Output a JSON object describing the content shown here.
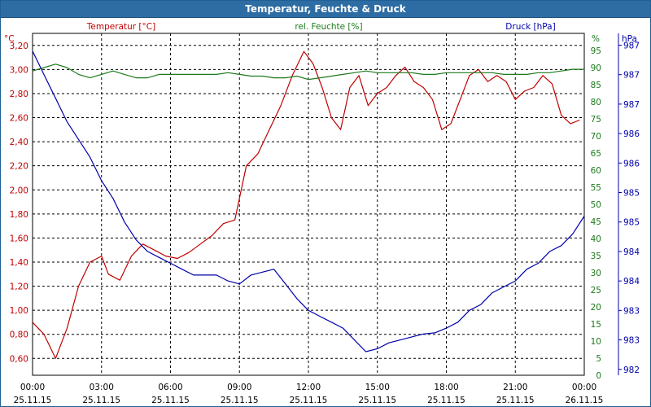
{
  "chart_data": {
    "type": "line",
    "title": "Temperatur, Feuchte & Druck",
    "x_ticks": [
      {
        "time": "00:00",
        "date": "25.11.15"
      },
      {
        "time": "03:00",
        "date": "25.11.15"
      },
      {
        "time": "06:00",
        "date": "25.11.15"
      },
      {
        "time": "09:00",
        "date": "25.11.15"
      },
      {
        "time": "12:00",
        "date": "25.11.15"
      },
      {
        "time": "15:00",
        "date": "25.11.15"
      },
      {
        "time": "18:00",
        "date": "25.11.15"
      },
      {
        "time": "21:00",
        "date": "25.11.15"
      },
      {
        "time": "00:00",
        "date": "26.11.15"
      }
    ],
    "xlim": [
      0,
      24
    ],
    "grid": true,
    "axes": {
      "temperature": {
        "label": "Temperatur [°C]",
        "unit": "°C",
        "ylim": [
          0.46,
          3.3
        ],
        "ticks": [
          "3,20",
          "3,00",
          "2,80",
          "2,60",
          "2,40",
          "2,20",
          "2,00",
          "1,80",
          "1,60",
          "1,40",
          "1,20",
          "1,00",
          "0,80",
          "0,60"
        ],
        "tick_values": [
          3.2,
          3.0,
          2.8,
          2.6,
          2.4,
          2.2,
          2.0,
          1.8,
          1.6,
          1.4,
          1.2,
          1.0,
          0.8,
          0.6
        ]
      },
      "humidity": {
        "label": "rel. Feuchte [%]",
        "unit": "%",
        "ylim": [
          0,
          100
        ],
        "ticks": [
          "95",
          "90",
          "85",
          "80",
          "75",
          "70",
          "65",
          "60",
          "55",
          "50",
          "45",
          "40",
          "35",
          "30",
          "25",
          "20",
          "15",
          "10",
          "5",
          "0"
        ],
        "tick_values": [
          95,
          90,
          85,
          80,
          75,
          70,
          65,
          60,
          55,
          50,
          45,
          40,
          35,
          30,
          25,
          20,
          15,
          10,
          5,
          0
        ]
      },
      "pressure": {
        "label": "Druck [hPa]",
        "unit": "hPa",
        "ylim": [
          981.9,
          987.7
        ],
        "ticks": [
          "987",
          "987",
          "987",
          "986",
          "986",
          "985",
          "985",
          "984",
          "984",
          "983",
          "983",
          "982"
        ],
        "tick_values": [
          987.5,
          987.0,
          986.5,
          986.0,
          985.5,
          985.0,
          984.5,
          984.0,
          983.5,
          983.0,
          982.5,
          982.0
        ]
      }
    },
    "series": [
      {
        "name": "Temperatur",
        "axis": "temperature",
        "color": "#c00000",
        "x": [
          0,
          0.5,
          1,
          1.5,
          2,
          2.5,
          3,
          3.3,
          3.8,
          4.3,
          4.8,
          5.3,
          5.8,
          6.3,
          6.8,
          7.3,
          7.8,
          8.3,
          8.8,
          9.3,
          9.8,
          10.3,
          10.8,
          11.3,
          11.8,
          12.2,
          12.6,
          13,
          13.4,
          13.8,
          14.2,
          14.6,
          15,
          15.4,
          15.8,
          16.2,
          16.6,
          17,
          17.4,
          17.8,
          18.2,
          18.6,
          19,
          19.4,
          19.8,
          20.2,
          20.6,
          21,
          21.4,
          21.8,
          22.2,
          22.6,
          23,
          23.4,
          23.8
        ],
        "values": [
          0.9,
          0.8,
          0.6,
          0.85,
          1.2,
          1.4,
          1.45,
          1.3,
          1.25,
          1.45,
          1.55,
          1.5,
          1.45,
          1.43,
          1.48,
          1.55,
          1.62,
          1.72,
          1.75,
          2.2,
          2.3,
          2.5,
          2.7,
          2.95,
          3.15,
          3.05,
          2.85,
          2.6,
          2.5,
          2.85,
          2.95,
          2.7,
          2.8,
          2.85,
          2.95,
          3.02,
          2.9,
          2.85,
          2.75,
          2.5,
          2.55,
          2.75,
          2.95,
          3.0,
          2.9,
          2.95,
          2.9,
          2.75,
          2.82,
          2.85,
          2.95,
          2.88,
          2.62,
          2.55,
          2.58
        ]
      },
      {
        "name": "rel. Feuchte",
        "axis": "humidity",
        "color": "#1c7a1c",
        "x": [
          0,
          0.5,
          1,
          1.5,
          2,
          2.5,
          3,
          3.5,
          4,
          4.5,
          5,
          5.5,
          6,
          6.5,
          7,
          7.5,
          8,
          8.5,
          9,
          9.5,
          10,
          10.5,
          11,
          11.5,
          12,
          12.5,
          13,
          13.5,
          14,
          14.5,
          15,
          15.5,
          16,
          16.5,
          17,
          17.5,
          18,
          18.5,
          19,
          19.5,
          20,
          20.5,
          21,
          21.5,
          22,
          22.5,
          23,
          23.5,
          24
        ],
        "values": [
          89,
          90,
          91,
          90,
          88,
          87,
          88,
          89,
          88,
          87,
          87,
          88,
          88,
          88,
          88,
          88,
          88,
          88.5,
          88,
          87.5,
          87.5,
          87,
          87,
          87.5,
          86.5,
          87,
          87.5,
          88,
          88.5,
          89,
          88.5,
          88.5,
          88.5,
          88.5,
          88,
          88,
          88.5,
          88.5,
          88.5,
          88.5,
          88.5,
          88,
          88,
          88,
          88.5,
          88.5,
          89,
          89.5,
          89.5
        ]
      },
      {
        "name": "Druck",
        "axis": "pressure",
        "color": "#0000aa",
        "x": [
          0,
          0.5,
          1,
          1.5,
          2,
          2.5,
          3,
          3.5,
          4,
          4.5,
          5,
          5.5,
          6,
          6.5,
          7,
          7.5,
          8,
          8.5,
          9,
          9.5,
          10,
          10.5,
          11,
          11.5,
          12,
          12.5,
          13,
          13.5,
          14,
          14.5,
          15,
          15.5,
          16,
          16.5,
          17,
          17.5,
          18,
          18.5,
          19,
          19.5,
          20,
          20.5,
          21,
          21.5,
          22,
          22.5,
          23,
          23.5,
          24
        ],
        "values": [
          987.4,
          987.0,
          986.6,
          986.2,
          985.9,
          985.6,
          985.2,
          984.9,
          984.5,
          984.2,
          984.0,
          983.9,
          983.8,
          983.7,
          983.6,
          983.6,
          983.6,
          983.5,
          983.45,
          983.6,
          983.65,
          983.7,
          983.45,
          983.2,
          983.0,
          982.9,
          982.8,
          982.7,
          982.5,
          982.3,
          982.35,
          982.45,
          982.5,
          982.55,
          982.6,
          982.62,
          982.7,
          982.8,
          983.0,
          983.1,
          983.3,
          983.4,
          983.5,
          983.7,
          983.8,
          984.0,
          984.1,
          984.3,
          984.6
        ]
      }
    ]
  }
}
